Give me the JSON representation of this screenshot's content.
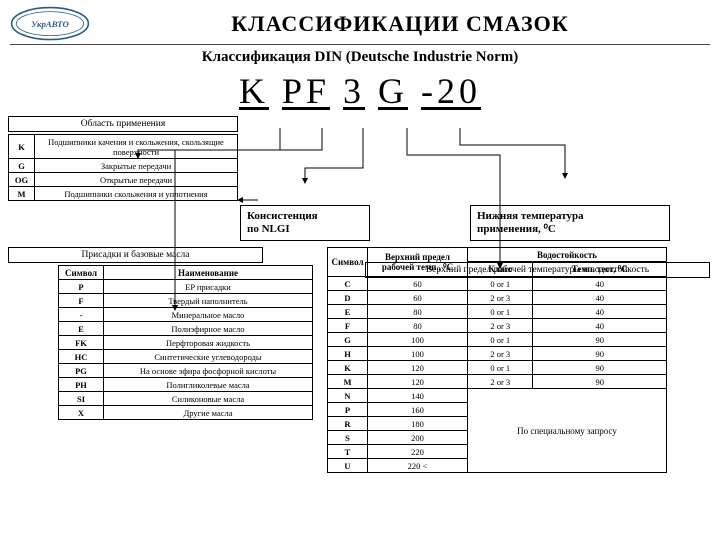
{
  "header": {
    "title": "КЛАССИФИКАЦИИ   СМАЗОК",
    "subtitle": "Классификация DIN (Deutsche Industrie Norm)",
    "formula_parts": [
      "K",
      "PF",
      "3",
      "G",
      "-20"
    ]
  },
  "area": {
    "label": "Область применения",
    "rows": [
      {
        "code": "K",
        "desc": "Подшипники качения и скольжения, скользящие поверхности"
      },
      {
        "code": "G",
        "desc": "Закрытые передачи"
      },
      {
        "code": "OG",
        "desc": "Открытые передачи"
      },
      {
        "code": "M",
        "desc": "Подшипники скольжения и уплотнения"
      }
    ]
  },
  "mid": {
    "box1_l1": "Консистенция",
    "box1_l2": "по NLGI",
    "box2_l1": "Нижняя температура",
    "box2_l2": "применения, ⁰C"
  },
  "additives": {
    "label": "Присадки и базовые масла",
    "col1": "Символ",
    "col2": "Наименование",
    "rows": [
      {
        "s": "P",
        "n": "EP присадки"
      },
      {
        "s": "F",
        "n": "Твердый наполнитель"
      },
      {
        "s": "-",
        "n": "Минеральное масло"
      },
      {
        "s": "E",
        "n": "Полиэфирное масло"
      },
      {
        "s": "FK",
        "n": "Перфторовая жидкость"
      },
      {
        "s": "HC",
        "n": "Синтетические углеводороды"
      },
      {
        "s": "PG",
        "n": "На основе эфира фосфорной кислоты"
      },
      {
        "s": "PH",
        "n": "Полигликолевые масла"
      },
      {
        "s": "SI",
        "n": "Силиконовые масла"
      },
      {
        "s": "X",
        "n": "Другие масла"
      }
    ]
  },
  "temp": {
    "label": "Верхний предел рабочей температуры и водостойкость",
    "col1": "Символ",
    "col2": "Верхний предел рабочей темп., ⁰C",
    "col3": "Водостойкость",
    "col3a": "Класс",
    "col3b": "Темп. тест, ⁰C",
    "rows": [
      {
        "s": "C",
        "t": "60",
        "k": "0 or 1",
        "tt": "40"
      },
      {
        "s": "D",
        "t": "60",
        "k": "2 or 3",
        "tt": "40"
      },
      {
        "s": "E",
        "t": "80",
        "k": "0 or 1",
        "tt": "40"
      },
      {
        "s": "F",
        "t": "80",
        "k": "2 or 3",
        "tt": "40"
      },
      {
        "s": "G",
        "t": "100",
        "k": "0 or 1",
        "tt": "90"
      },
      {
        "s": "H",
        "t": "100",
        "k": "2 or 3",
        "tt": "90"
      },
      {
        "s": "K",
        "t": "120",
        "k": "0 or 1",
        "tt": "90"
      },
      {
        "s": "M",
        "t": "120",
        "k": "2 or 3",
        "tt": "90"
      },
      {
        "s": "N",
        "t": "140",
        "k": "",
        "tt": ""
      },
      {
        "s": "P",
        "t": "160",
        "k": "",
        "tt": ""
      },
      {
        "s": "R",
        "t": "180",
        "k": "",
        "tt": ""
      },
      {
        "s": "S",
        "t": "200",
        "k": "",
        "tt": ""
      },
      {
        "s": "T",
        "t": "220",
        "k": "",
        "tt": ""
      },
      {
        "s": "U",
        "t": "220 <",
        "k": "",
        "tt": ""
      }
    ],
    "special": "По специальному запросу"
  },
  "colors": {
    "accent": "#2a5a8a"
  }
}
